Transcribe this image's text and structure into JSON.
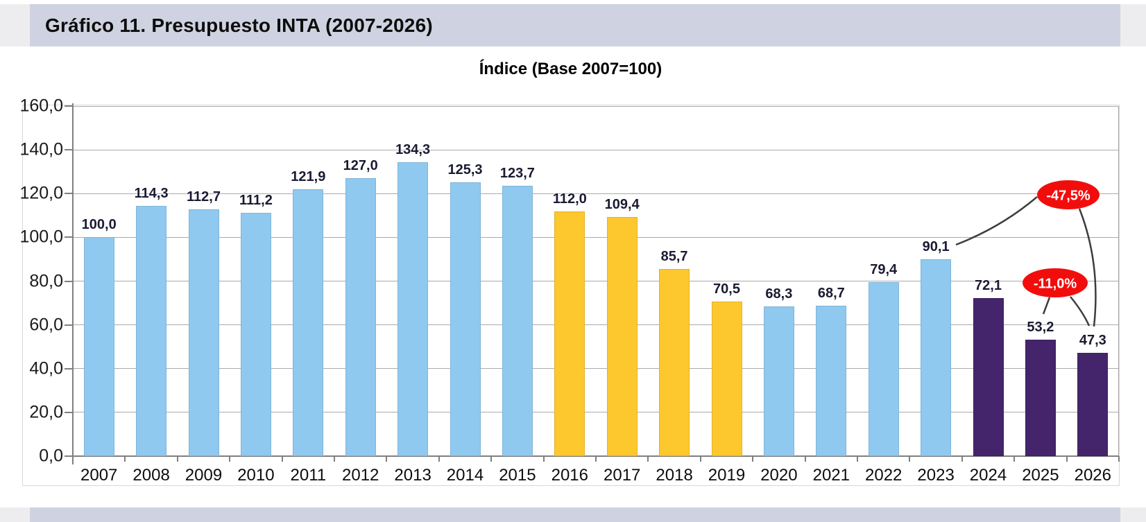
{
  "page": {
    "band_color": "#cfd3e1",
    "side_band_color": "#ededef"
  },
  "header": {
    "title": "Gráfico 11. Presupuesto INTA (2007-2026)"
  },
  "chart_data": {
    "type": "bar",
    "title": "Índice (Base 2007=100)",
    "categories": [
      "2007",
      "2008",
      "2009",
      "2010",
      "2011",
      "2012",
      "2013",
      "2014",
      "2015",
      "2016",
      "2017",
      "2018",
      "2019",
      "2020",
      "2021",
      "2022",
      "2023",
      "2024",
      "2025",
      "2026"
    ],
    "values": [
      100.0,
      114.3,
      112.7,
      111.2,
      121.9,
      127.0,
      134.3,
      125.3,
      123.7,
      112.0,
      109.4,
      85.7,
      70.5,
      68.3,
      68.7,
      79.4,
      90.1,
      72.1,
      53.2,
      47.3
    ],
    "value_labels": [
      "100,0",
      "114,3",
      "112,7",
      "111,2",
      "121,9",
      "127,0",
      "134,3",
      "125,3",
      "123,7",
      "112,0",
      "109,4",
      "85,7",
      "70,5",
      "68,3",
      "68,7",
      "79,4",
      "90,1",
      "72,1",
      "53,2",
      "47,3"
    ],
    "bar_colors": [
      "#8FC9F0",
      "#8FC9F0",
      "#8FC9F0",
      "#8FC9F0",
      "#8FC9F0",
      "#8FC9F0",
      "#8FC9F0",
      "#8FC9F0",
      "#8FC9F0",
      "#FDC72E",
      "#FDC72E",
      "#FDC72E",
      "#FDC72E",
      "#8FC9F0",
      "#8FC9F0",
      "#8FC9F0",
      "#8FC9F0",
      "#44246A",
      "#44246A",
      "#44246A"
    ],
    "color_legend": {
      "blue": "#8FC9F0",
      "yellow": "#FDC72E",
      "purple": "#44246A"
    },
    "ylim": [
      0,
      160
    ],
    "ytick_interval": 20,
    "ytick_labels": [
      "0,0",
      "20,0",
      "40,0",
      "60,0",
      "80,0",
      "100,0",
      "120,0",
      "140,0",
      "160,0"
    ],
    "grid": true,
    "legend_position": "none",
    "annotations": [
      {
        "label": "-47,5%",
        "fill": "#F20D0D",
        "text_color": "#ffffff",
        "from_category": "2023",
        "to_category": "2026"
      },
      {
        "label": "-11,0%",
        "fill": "#F20D0D",
        "text_color": "#ffffff",
        "from_category": "2025",
        "to_category": "2026"
      }
    ]
  }
}
